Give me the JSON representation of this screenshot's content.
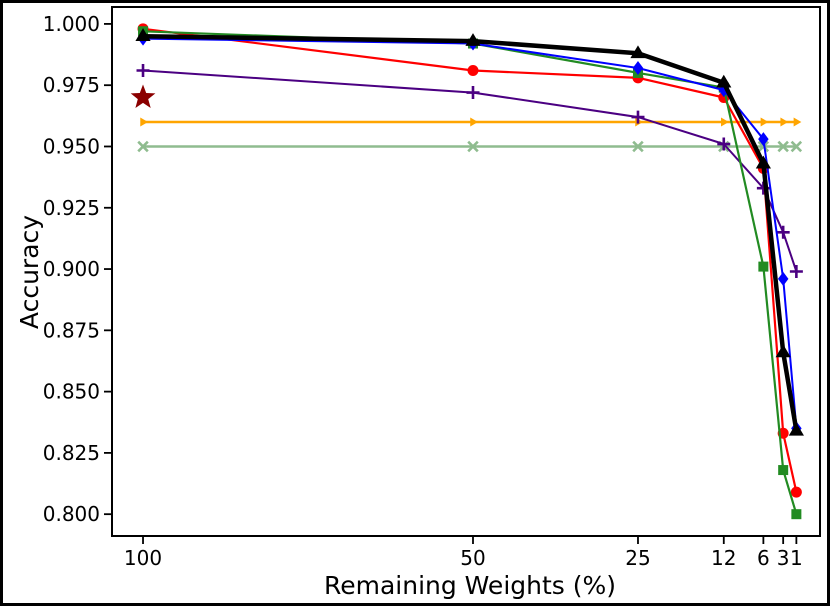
{
  "figure": {
    "background_color": "#ffffff",
    "border_color": "#000000"
  },
  "chart_data": {
    "type": "line",
    "title": "",
    "xlabel": "Remaining Weights (%)",
    "ylabel": "Accuracy",
    "grid": false,
    "legend": "none",
    "x_axis": {
      "reversed": true,
      "min": -2.58,
      "max": 104.7
    },
    "y_axis": {
      "min": 0.7911,
      "max": 1.0069
    },
    "x_tick_values": [
      100,
      50,
      25,
      12,
      6,
      3,
      1
    ],
    "x_tick_labels": [
      "100",
      "50",
      "25",
      "12",
      "6",
      "3",
      "1"
    ],
    "y_tick_values": [
      1.0,
      0.975,
      0.95,
      0.925,
      0.9,
      0.875,
      0.85,
      0.825,
      0.8
    ],
    "y_tick_labels": [
      "1.000",
      "0.975",
      "0.950",
      "0.925",
      "0.900",
      "0.875",
      "0.850",
      "0.825",
      "0.800"
    ],
    "x": [
      100,
      50,
      25,
      12,
      6,
      3,
      1
    ],
    "series": [
      {
        "name": "seagreen-flat-baseline",
        "color": "#8FBC8F",
        "marker": "x",
        "marker_size": 6,
        "line_width": 2.5,
        "values": [
          0.95,
          0.95,
          0.95,
          0.95,
          0.95,
          0.95,
          0.95
        ]
      },
      {
        "name": "orange-flat-baseline",
        "color": "#FFA500",
        "marker": "triangle-right",
        "marker_size": 5,
        "line_width": 2.5,
        "values": [
          0.96,
          0.96,
          0.96,
          0.96,
          0.96,
          0.96,
          0.96
        ]
      },
      {
        "name": "purple-plus-series",
        "color": "#4B0082",
        "marker": "plus",
        "marker_size": 6.5,
        "line_width": 2,
        "values": [
          0.981,
          0.972,
          0.962,
          0.951,
          0.933,
          0.915,
          0.899
        ]
      },
      {
        "name": "red-circle-series",
        "color": "#FF0000",
        "marker": "circle",
        "marker_size": 5.5,
        "line_width": 2.2,
        "values": [
          0.998,
          0.981,
          0.978,
          0.97,
          0.941,
          0.833,
          0.809
        ]
      },
      {
        "name": "green-square-series",
        "color": "#228B22",
        "marker": "square",
        "marker_size": 5,
        "line_width": 2.2,
        "values": [
          0.997,
          0.992,
          0.98,
          0.974,
          0.901,
          0.818,
          0.8
        ]
      },
      {
        "name": "blue-diamond-series",
        "color": "#0000FF",
        "marker": "diamond",
        "marker_size": 7,
        "line_width": 2,
        "values": [
          0.994,
          0.992,
          0.982,
          0.973,
          0.953,
          0.896,
          0.835
        ]
      },
      {
        "name": "black-thick-series",
        "color": "#000000",
        "marker": "triangle-up",
        "marker_size": 8,
        "line_width": 4.5,
        "values": [
          0.995,
          0.993,
          0.988,
          0.976,
          0.943,
          0.866,
          0.834
        ]
      }
    ],
    "points": [
      {
        "name": "dark-red-star-point",
        "color": "#8B0000",
        "marker": "star",
        "marker_size": 13,
        "x": 100,
        "y": 0.97
      }
    ]
  }
}
